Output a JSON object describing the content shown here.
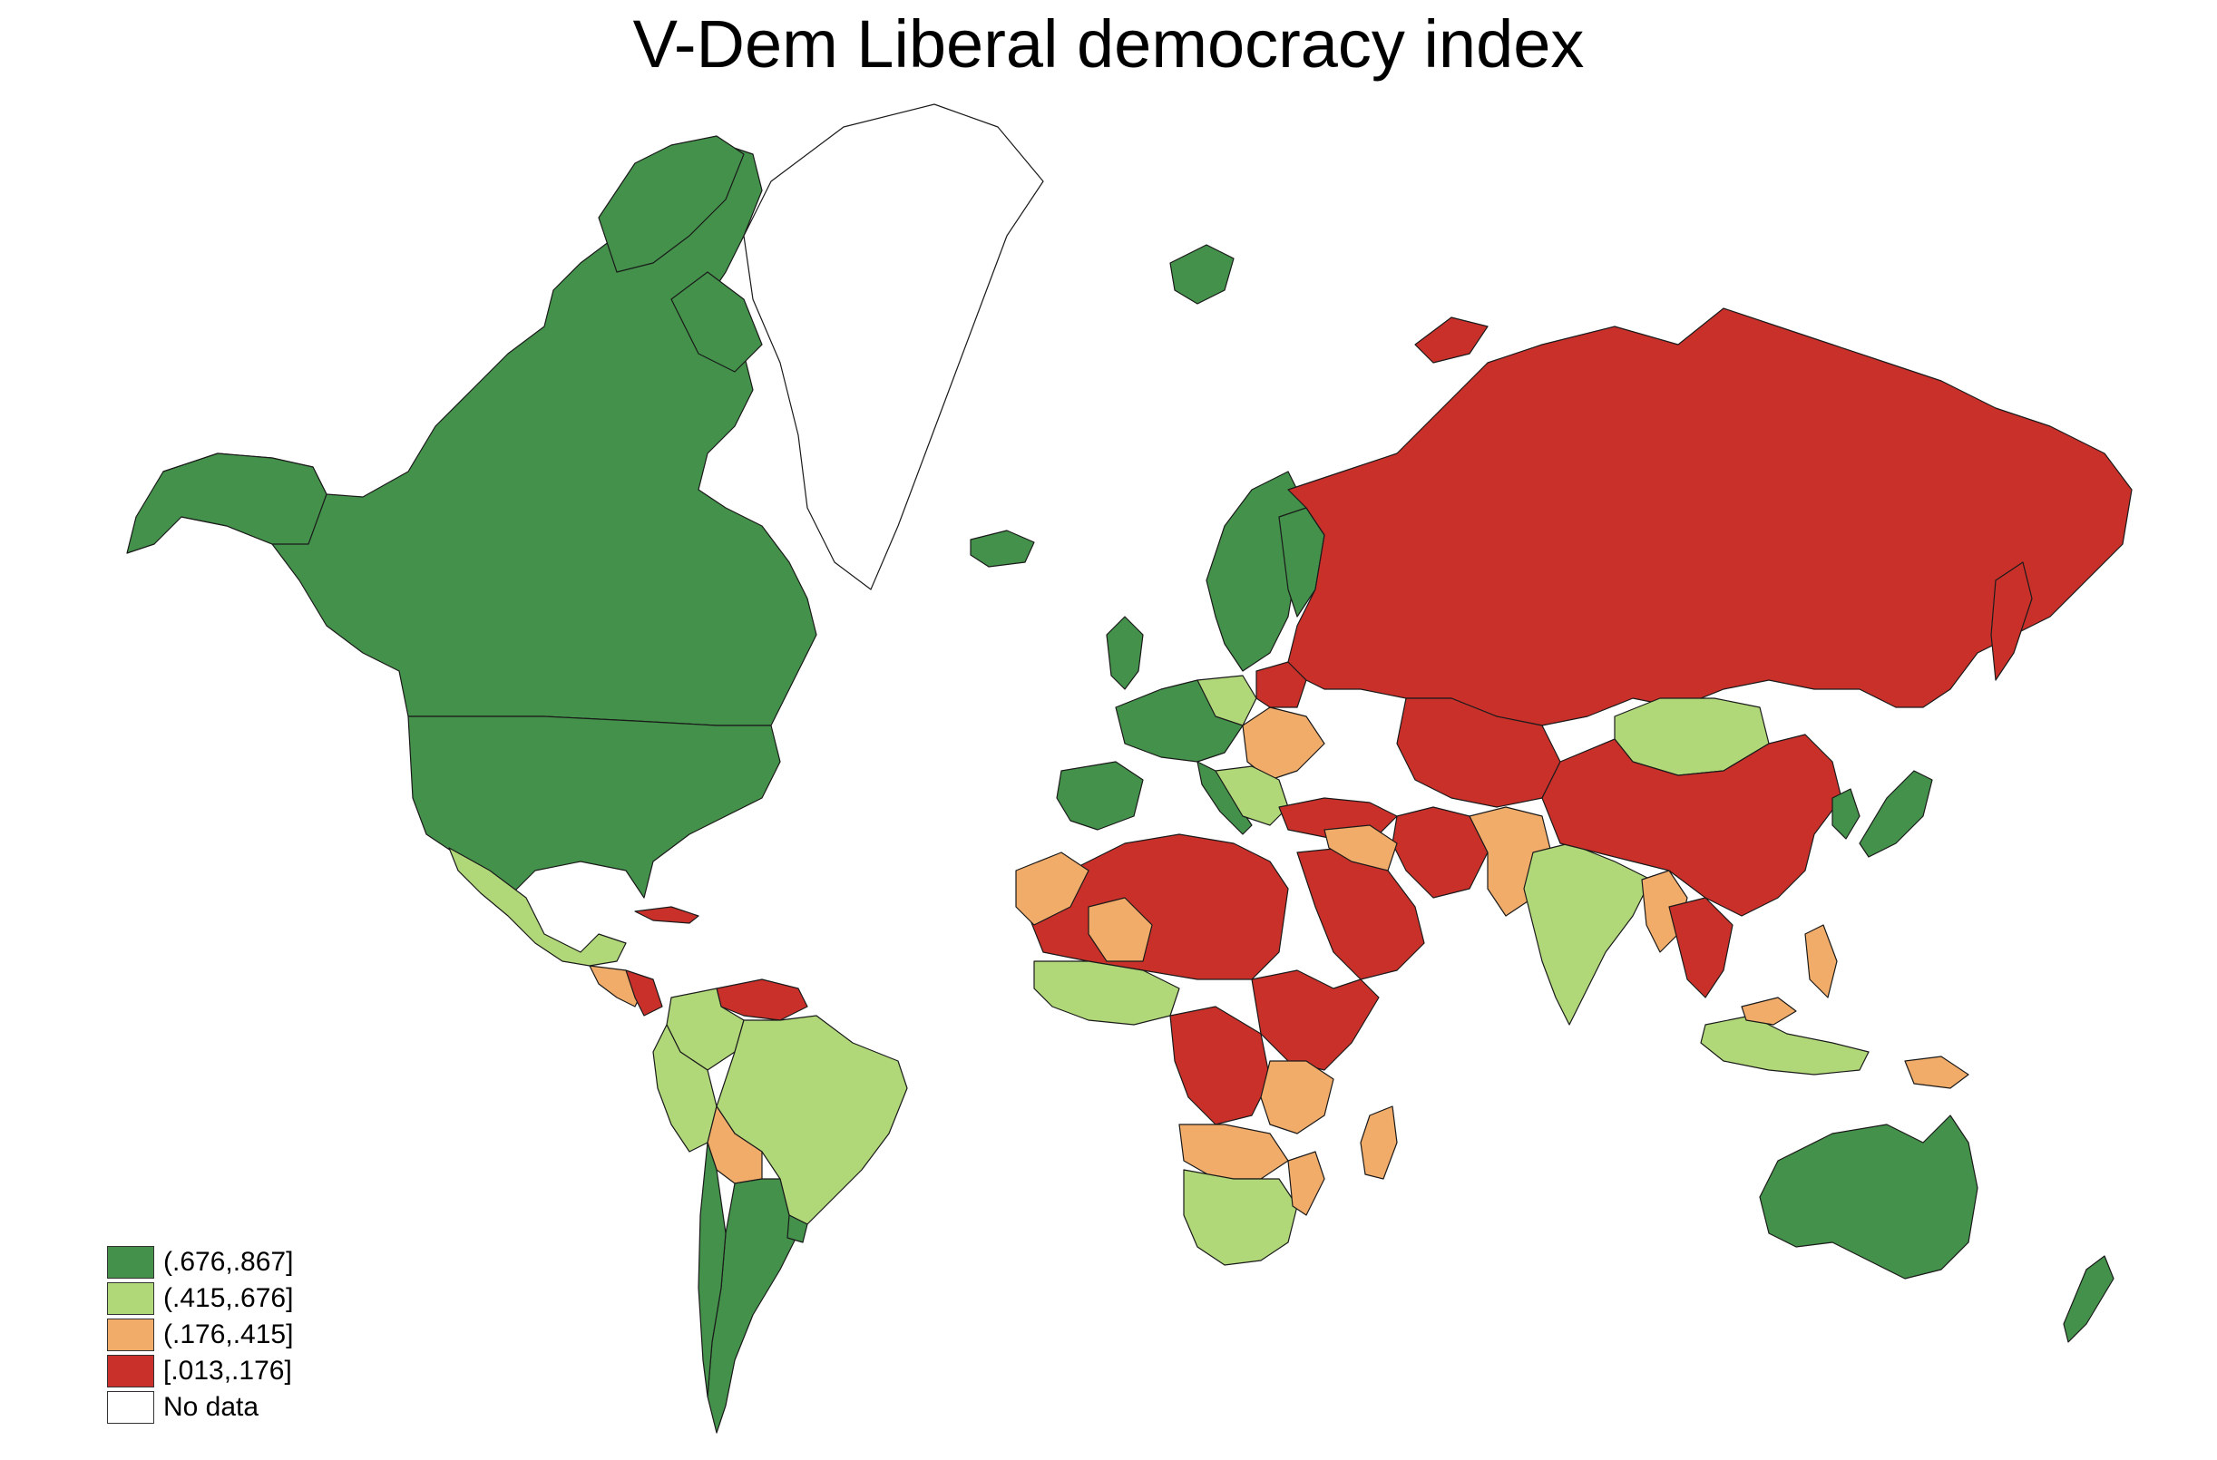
{
  "title": "V-Dem Liberal democracy index",
  "legend": [
    {
      "label": "(.676,.867]",
      "color": "#43914a"
    },
    {
      "label": "(.415,.676]",
      "color": "#b1d878"
    },
    {
      "label": "(.176,.415]",
      "color": "#f2ac6a"
    },
    {
      "label": "[.013,.176]",
      "color": "#c9302a"
    },
    {
      "label": "No data",
      "color": "#ffffff"
    }
  ]
}
